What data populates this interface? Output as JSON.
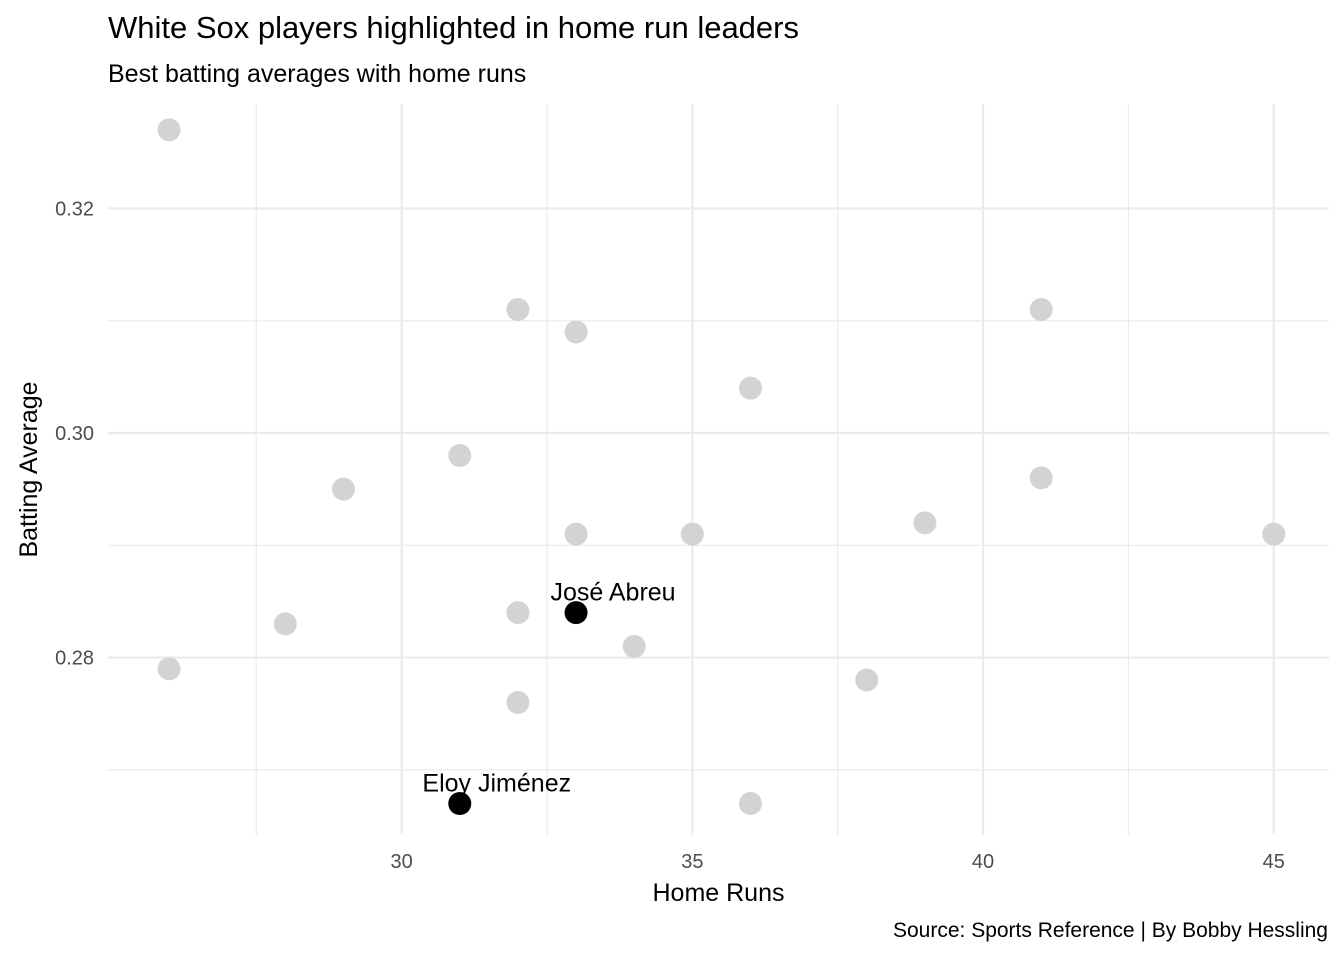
{
  "chart_data": {
    "type": "scatter",
    "title": "White Sox players highlighted in home run leaders",
    "subtitle": "Best batting averages with home runs",
    "xlabel": "Home Runs",
    "ylabel": "Batting Average",
    "caption": "Source: Sports Reference | By Bobby Hessling",
    "xlim": [
      24.95,
      45.95
    ],
    "ylim": [
      0.2642,
      0.3293
    ],
    "x_ticks": [
      30,
      35,
      40,
      45
    ],
    "x_tick_labels": [
      "30",
      "35",
      "40",
      "45"
    ],
    "x_minor_ticks": [
      27.5,
      32.5,
      37.5,
      42.5
    ],
    "y_ticks": [
      0.28,
      0.3,
      0.32
    ],
    "y_tick_labels": [
      "0.28",
      "0.30",
      "0.32"
    ],
    "y_minor_ticks": [
      0.27,
      0.29,
      0.31
    ],
    "grid": true,
    "colors": {
      "others": "#d3d3d3",
      "highlight": "#000000",
      "grid": "#ebebeb"
    },
    "series": [
      {
        "values": [
          {
            "x": 26,
            "y": 0.327
          },
          {
            "x": 26,
            "y": 0.279
          },
          {
            "x": 28,
            "y": 0.283
          },
          {
            "x": 29,
            "y": 0.295
          },
          {
            "x": 31,
            "y": 0.298
          },
          {
            "x": 32,
            "y": 0.311
          },
          {
            "x": 32,
            "y": 0.284
          },
          {
            "x": 32,
            "y": 0.276
          },
          {
            "x": 33,
            "y": 0.309
          },
          {
            "x": 33,
            "y": 0.291
          },
          {
            "x": 34,
            "y": 0.281
          },
          {
            "x": 35,
            "y": 0.291
          },
          {
            "x": 36,
            "y": 0.304
          },
          {
            "x": 36,
            "y": 0.267
          },
          {
            "x": 38,
            "y": 0.278
          },
          {
            "x": 39,
            "y": 0.292
          },
          {
            "x": 41,
            "y": 0.311
          },
          {
            "x": 41,
            "y": 0.296
          },
          {
            "x": 45,
            "y": 0.291
          }
        ]
      },
      {
        "values": [
          {
            "x": 33,
            "y": 0.284,
            "label": "José Abreu"
          },
          {
            "x": 31,
            "y": 0.267,
            "label": "Eloy Jiménez"
          }
        ]
      }
    ]
  }
}
